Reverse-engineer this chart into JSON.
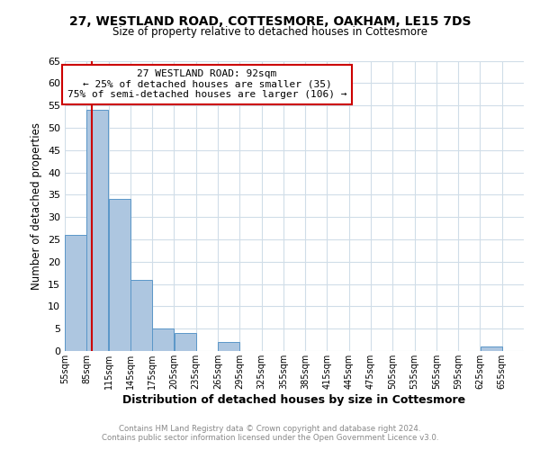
{
  "title_line1": "27, WESTLAND ROAD, COTTESMORE, OAKHAM, LE15 7DS",
  "title_line2": "Size of property relative to detached houses in Cottesmore",
  "xlabel": "Distribution of detached houses by size in Cottesmore",
  "ylabel": "Number of detached properties",
  "footer_line1": "Contains HM Land Registry data © Crown copyright and database right 2024.",
  "footer_line2": "Contains public sector information licensed under the Open Government Licence v3.0.",
  "annotation_line1": "27 WESTLAND ROAD: 92sqm",
  "annotation_line2": "← 25% of detached houses are smaller (35)",
  "annotation_line3": "75% of semi-detached houses are larger (106) →",
  "property_size_sqm": 92,
  "bin_labels": [
    "55sqm",
    "85sqm",
    "115sqm",
    "145sqm",
    "175sqm",
    "205sqm",
    "235sqm",
    "265sqm",
    "295sqm",
    "325sqm",
    "355sqm",
    "385sqm",
    "415sqm",
    "445sqm",
    "475sqm",
    "505sqm",
    "535sqm",
    "565sqm",
    "595sqm",
    "625sqm",
    "655sqm"
  ],
  "bin_edges": [
    55,
    85,
    115,
    145,
    175,
    205,
    235,
    265,
    295,
    325,
    355,
    385,
    415,
    445,
    475,
    505,
    535,
    565,
    595,
    625,
    655,
    685
  ],
  "bar_heights": [
    26,
    54,
    34,
    16,
    5,
    4,
    0,
    2,
    0,
    0,
    0,
    0,
    0,
    0,
    0,
    0,
    0,
    0,
    0,
    1,
    0
  ],
  "bar_color": "#adc6e0",
  "bar_edge_color": "#5a96c8",
  "property_line_color": "#cc0000",
  "annotation_box_edge_color": "#cc0000",
  "background_color": "#ffffff",
  "grid_color": "#d0dde8",
  "ylim_max": 65,
  "yticks": [
    0,
    5,
    10,
    15,
    20,
    25,
    30,
    35,
    40,
    45,
    50,
    55,
    60,
    65
  ],
  "title_fontsize": 10,
  "subtitle_fontsize": 8.5,
  "ylabel_text": "Number of detached properties",
  "footer_color": "#888888",
  "footer_fontsize": 6.2
}
